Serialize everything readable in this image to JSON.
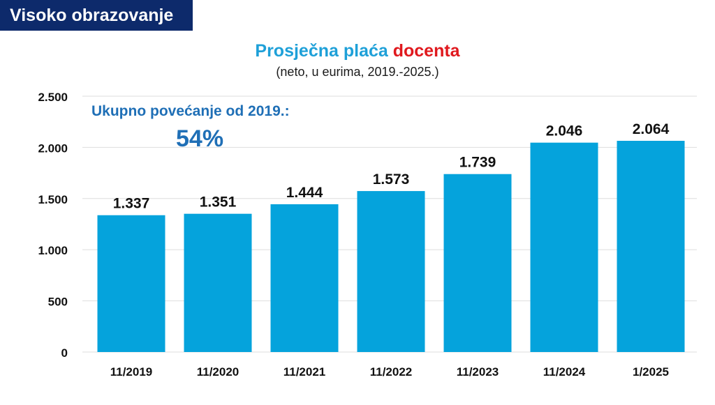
{
  "header": {
    "badge": "Visoko obrazovanje",
    "title_main": "Prosječna plaća ",
    "title_accent": "docenta",
    "subtitle": "(neto, u eurima, 2019.-2025.)"
  },
  "annotation": {
    "label": "Ukupno povećanje od 2019.:",
    "value": "54%"
  },
  "colors": {
    "badge_bg": "#0d2a6b",
    "title": "#1ea0d8",
    "title_accent": "#e0191e",
    "bars": "#05a3dc",
    "annotation": "#1f6fb6",
    "grid": "#dddddd"
  },
  "chart_data": {
    "type": "bar",
    "title": "Prosječna plaća docenta",
    "subtitle": "(neto, u eurima, 2019.-2025.)",
    "categories": [
      "11/2019",
      "11/2020",
      "11/2021",
      "11/2022",
      "11/2023",
      "11/2024",
      "1/2025"
    ],
    "values": [
      1337,
      1351,
      1444,
      1573,
      1739,
      2046,
      2064
    ],
    "value_labels": [
      "1.337",
      "1.351",
      "1.444",
      "1.573",
      "1.739",
      "2.046",
      "2.064"
    ],
    "yticks": [
      0,
      500,
      1000,
      1500,
      2000,
      2500
    ],
    "ytick_labels": [
      "0",
      "500",
      "1.000",
      "1.500",
      "2.000",
      "2.500"
    ],
    "ylim": [
      0,
      2500
    ],
    "xlabel": "",
    "ylabel": "",
    "grid": true,
    "legend": "none"
  }
}
